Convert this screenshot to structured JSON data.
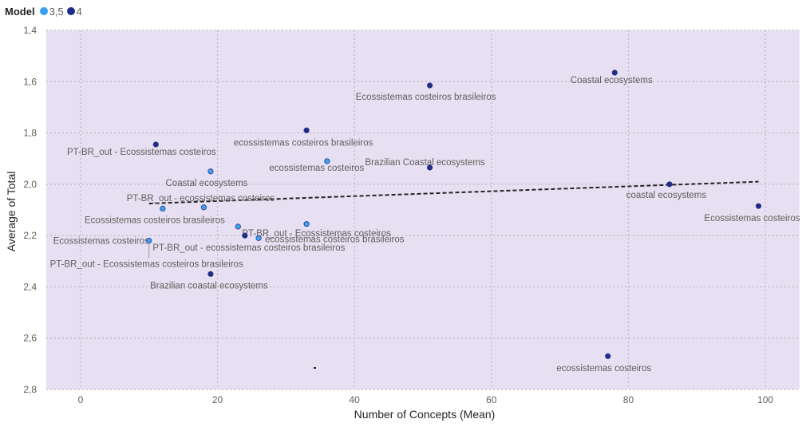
{
  "legend": {
    "title": "Model",
    "items": [
      {
        "label": "3,5",
        "color": "#3a9ff2"
      },
      {
        "label": "4",
        "color": "#1f2b8a"
      }
    ]
  },
  "colors": {
    "plot_background": "#e6e0f2",
    "gridline": "#bdb7c7",
    "trendline": "#252423"
  },
  "chart_data": {
    "type": "scatter",
    "xlabel": "Number of Concepts (Mean)",
    "ylabel": "Average of Total",
    "xlim": [
      -5,
      105
    ],
    "ylim": [
      1.4,
      2.8
    ],
    "y_axis_reversed": true,
    "grid": true,
    "legend_position": "top-left",
    "x_ticks": [
      0,
      20,
      40,
      60,
      80,
      100
    ],
    "x_tick_labels": [
      "0",
      "20",
      "40",
      "60",
      "80",
      "100"
    ],
    "y_ticks": [
      1.4,
      1.6,
      1.8,
      2.0,
      2.2,
      2.4,
      2.6,
      2.8
    ],
    "y_tick_labels": [
      "1,4",
      "1,6",
      "1,8",
      "2,0",
      "2,2",
      "2,4",
      "2,6",
      "2,8"
    ],
    "series": [
      {
        "name": "3,5",
        "points": [
          {
            "x": 36,
            "y": 1.91,
            "label": "ecossistemas costeiros"
          },
          {
            "x": 19,
            "y": 1.95,
            "label": "Coastal ecosystems"
          },
          {
            "x": 18,
            "y": 2.09,
            "label": "PT-BR_out - ecossistemas costeiros"
          },
          {
            "x": 12,
            "y": 2.095,
            "label": "Ecossistemas costeiros brasileiros"
          },
          {
            "x": 23,
            "y": 2.165,
            "label": "PT-BR_out - Ecossistemas costeiros"
          },
          {
            "x": 33,
            "y": 2.155,
            "label": ""
          },
          {
            "x": 10,
            "y": 2.22,
            "label": "Ecossistemas costeiros"
          },
          {
            "x": 26,
            "y": 2.21,
            "label": "ecossistemas costeiros brasileiros"
          }
        ]
      },
      {
        "name": "4",
        "points": [
          {
            "x": 78,
            "y": 1.565,
            "label": "Coastal ecosystems"
          },
          {
            "x": 51,
            "y": 1.615,
            "label": "Ecossistemas costeiros brasileiros"
          },
          {
            "x": 33,
            "y": 1.79,
            "label": "ecossistemas costeiros brasileiros"
          },
          {
            "x": 11,
            "y": 1.845,
            "label": "PT-BR_out - Ecossistemas costeiros"
          },
          {
            "x": 51,
            "y": 1.935,
            "label": "Brazilian Coastal ecosystems"
          },
          {
            "x": 86,
            "y": 2.0,
            "label": "coastal ecosystems"
          },
          {
            "x": 99,
            "y": 2.085,
            "label": "Ecossistemas costeiros"
          },
          {
            "x": 24,
            "y": 2.2,
            "label": "PT-BR_out - ecossistemas costeiros brasileiros"
          },
          {
            "x": 19,
            "y": 2.35,
            "label": "Brazilian coastal ecosystems"
          },
          {
            "x": 77,
            "y": 2.67,
            "label": "ecossistemas costeiros"
          }
        ]
      }
    ],
    "extra_labels": [
      {
        "x": 10,
        "y": 2.22,
        "label": "PT-BR_out - Ecossistemas costeiros brasileiros"
      }
    ],
    "trendline": {
      "x": [
        10,
        99
      ],
      "y": [
        2.075,
        1.99
      ]
    }
  }
}
